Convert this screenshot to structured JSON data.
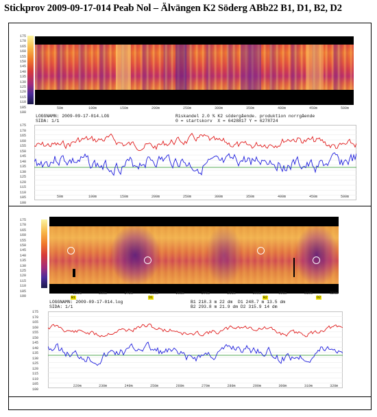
{
  "document": {
    "title": "Stickprov 2009-09-17-014 Peab Nol – Älvängen  K2 Söderg ABb22  B1, D1, B2, D2"
  },
  "panel1": {
    "scale": [
      "175",
      "170",
      "165",
      "160",
      "155",
      "150",
      "145",
      "140",
      "135",
      "130",
      "125",
      "120",
      "115",
      "110",
      "105",
      "100"
    ],
    "distances": [
      "50m",
      "100m",
      "150m",
      "200m",
      "250m",
      "300m",
      "350m",
      "400m",
      "450m",
      "500m"
    ],
    "info_left": [
      "LOGGNAMN: 2009-09-17-014.LOG",
      "SIDA: 1/1"
    ],
    "info_right": [
      "Riskandel 2.0 % K2 södergående. produktion norrgående",
      "0 = startskorv  X = 6428817 Y = 6278724"
    ],
    "chart_scale": [
      "175",
      "170",
      "165",
      "160",
      "155",
      "150",
      "145",
      "140",
      "135",
      "130",
      "125",
      "120",
      "115",
      "110",
      "105",
      "100"
    ],
    "chart_distances": [
      "50m",
      "100m",
      "150m",
      "200m",
      "250m",
      "300m",
      "350m",
      "400m",
      "450m",
      "500m"
    ]
  },
  "panel2": {
    "scale": [
      "175",
      "170",
      "165",
      "160",
      "155",
      "150",
      "145",
      "140",
      "135",
      "130",
      "125",
      "120",
      "115",
      "110",
      "105",
      "100"
    ],
    "distances": [
      "220m",
      "230m",
      "240m",
      "250m",
      "260m",
      "270m",
      "280m",
      "290m",
      "300m",
      "310m",
      "320m"
    ],
    "markers": [
      "B1",
      "D1",
      "B2",
      "D2"
    ],
    "info_left": [
      "LOGGNAMN: 2009-09-17-014.log",
      "SIDA: 1/1"
    ],
    "info_right": [
      "B1 218.3 m 22 dm  D1 248.7 m 13.5 dm",
      "B2 293.8 m 21.9 dm D2 315.9 14 dm"
    ],
    "chart_scale": [
      "175",
      "170",
      "165",
      "160",
      "155",
      "150",
      "145",
      "140",
      "135",
      "130",
      "125",
      "120",
      "115",
      "110",
      "105",
      "100"
    ],
    "chart_distances": [
      "220m",
      "230m",
      "240m",
      "250m",
      "260m",
      "270m",
      "280m",
      "290m",
      "300m",
      "310m",
      "320m"
    ]
  },
  "colors": {
    "max_line": "#e01818",
    "min_line": "#1a1adc",
    "ref_line": "#1a8a1a"
  }
}
